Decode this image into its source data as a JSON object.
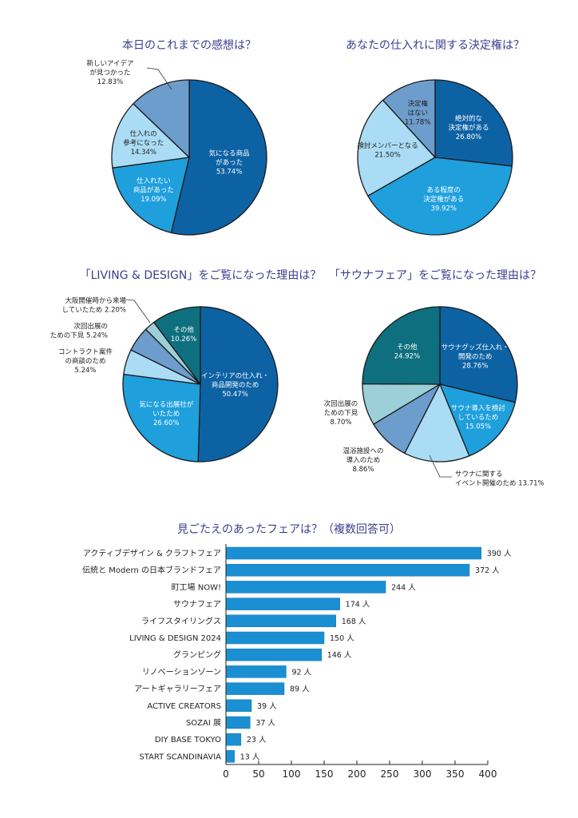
{
  "chart_data": [
    {
      "type": "pie",
      "title": "本日のこれまでの感想は？",
      "slices": [
        {
          "label": [
            "気になる商品",
            "があった"
          ],
          "value": 53.74,
          "pct": "53.74%",
          "color": "#0d62a4",
          "text": "light",
          "pos": "inside"
        },
        {
          "label": [
            "仕入れたい",
            "商品があった"
          ],
          "value": 19.09,
          "pct": "19.09%",
          "color": "#1f9fdc",
          "text": "light",
          "pos": "inside"
        },
        {
          "label": [
            "仕入れの",
            "参考になった"
          ],
          "value": 14.34,
          "pct": "14.34%",
          "color": "#aadcf5",
          "text": "dark",
          "pos": "inside"
        },
        {
          "label": [
            "新しいアイデア",
            "が見つかった"
          ],
          "value": 12.83,
          "pct": "12.83%",
          "color": "#6d9dcc",
          "text": "dark",
          "pos": "outside"
        }
      ]
    },
    {
      "type": "pie",
      "title": "あなたの仕入れに関する決定権は？",
      "slices": [
        {
          "label": [
            "絶対的な",
            "決定権がある"
          ],
          "value": 26.8,
          "pct": "26.80%",
          "color": "#0d62a4",
          "text": "light",
          "pos": "inside"
        },
        {
          "label": [
            "ある程度の",
            "決定権がある"
          ],
          "value": 39.92,
          "pct": "39.92%",
          "color": "#1f9fdc",
          "text": "light",
          "pos": "inside"
        },
        {
          "label": [
            "検討メンバーとなる"
          ],
          "value": 21.5,
          "pct": "21.50%",
          "color": "#aadcf5",
          "text": "dark",
          "pos": "inside"
        },
        {
          "label": [
            "決定権",
            "はない"
          ],
          "value": 11.78,
          "pct": "11.78%",
          "color": "#6d9dcc",
          "text": "dark",
          "pos": "inside"
        }
      ]
    },
    {
      "type": "pie",
      "title": "「LIVING & DESIGN」をご覧になった理由は？",
      "slices": [
        {
          "label": [
            "インテリアの仕入れ・",
            "商品開発のため"
          ],
          "value": 50.47,
          "pct": "50.47%",
          "color": "#0d62a4",
          "text": "light",
          "pos": "inside"
        },
        {
          "label": [
            "気になる出展社が",
            "いたため"
          ],
          "value": 26.6,
          "pct": "26.60%",
          "color": "#1f9fdc",
          "text": "light",
          "pos": "inside"
        },
        {
          "label": [
            "コントラクト案件",
            "の商談のため"
          ],
          "value": 5.24,
          "pct": "5.24%",
          "color": "#aadcf5",
          "text": "dark",
          "pos": "outside"
        },
        {
          "label": [
            "次回出展の",
            "ための下見"
          ],
          "value": 5.24,
          "pct": "5.24%",
          "color": "#6d9dcc",
          "text": "dark",
          "pos": "outside"
        },
        {
          "label": [
            "大阪開催時から来場",
            "していたため"
          ],
          "value": 2.2,
          "pct": "2.20%",
          "color": "#9ccfd8",
          "text": "dark",
          "pos": "outside"
        },
        {
          "label": [
            "その他"
          ],
          "value": 10.26,
          "pct": "10.26%",
          "color": "#0e6f7e",
          "text": "light",
          "pos": "inside"
        }
      ]
    },
    {
      "type": "pie",
      "title": "「サウナフェア」をご覧になった理由は？",
      "slices": [
        {
          "label": [
            "サウナグッズ仕入れ・",
            "開発のため"
          ],
          "value": 28.76,
          "pct": "28.76%",
          "color": "#0d62a4",
          "text": "light",
          "pos": "inside"
        },
        {
          "label": [
            "サウナ導入を検討",
            "しているため"
          ],
          "value": 15.05,
          "pct": "15.05%",
          "color": "#1f9fdc",
          "text": "light",
          "pos": "inside"
        },
        {
          "label": [
            "サウナに関する",
            "イベント開催のため"
          ],
          "value": 13.71,
          "pct": "13.71%",
          "color": "#aadcf5",
          "text": "dark",
          "pos": "outside"
        },
        {
          "label": [
            "温浴施設への",
            "導入のため"
          ],
          "value": 8.86,
          "pct": "8.86%",
          "color": "#6d9dcc",
          "text": "dark",
          "pos": "outside"
        },
        {
          "label": [
            "次回出展の",
            "ための下見"
          ],
          "value": 8.7,
          "pct": "8.70%",
          "color": "#9ccfd8",
          "text": "dark",
          "pos": "outside"
        },
        {
          "label": [
            "その他"
          ],
          "value": 24.92,
          "pct": "24.92%",
          "color": "#0e6f7e",
          "text": "light",
          "pos": "inside"
        }
      ]
    },
    {
      "type": "bar",
      "orientation": "horizontal",
      "title": "見ごたえのあったフェアは？（複数回答可）",
      "categories": [
        "アクティブデザイン & クラフトフェア",
        "伝統と Modern の日本ブランドフェア",
        "町工場 NOW!",
        "サウナフェア",
        "ライフスタイリングス",
        "LIVING & DESIGN 2024",
        "グランピング",
        "リノベーションゾーン",
        "アートギャラリーフェア",
        "ACTIVE CREATORS",
        "SOZAI 展",
        "DIY BASE TOKYO",
        "START SCANDINAVIA"
      ],
      "values": [
        390,
        372,
        244,
        174,
        168,
        150,
        146,
        92,
        89,
        39,
        37,
        23,
        13
      ],
      "value_suffix": " 人",
      "xlim": [
        0,
        400
      ],
      "xticks": [
        0,
        50,
        100,
        150,
        200,
        250,
        300,
        350,
        400
      ],
      "xlabel": "",
      "ylabel": "",
      "color": "#1a8fd2",
      "grid": false
    }
  ]
}
